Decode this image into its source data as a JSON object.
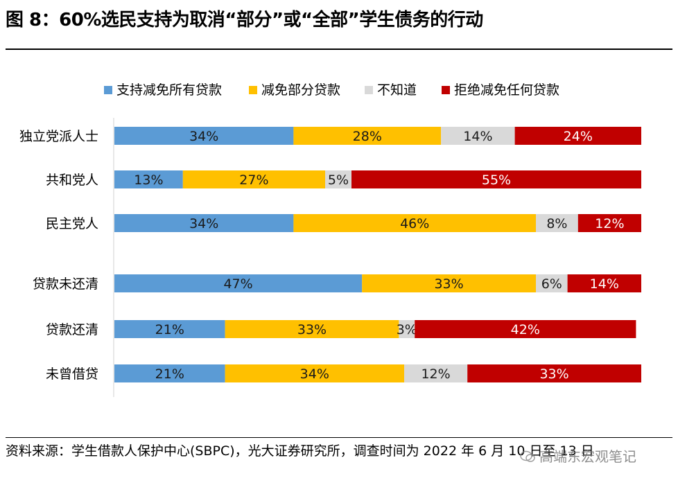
{
  "header": {
    "title": "图 8：60%选民支持为取消“部分”或“全部”学生债务的行动"
  },
  "footer": {
    "source": "资料来源：学生借款人保护中心(SBPC)，光大证券研究所，调查时间为 2022 年 6 月 10 日至 13 日",
    "watermark": "高端东宏观笔记"
  },
  "chart_data": {
    "type": "bar",
    "orientation": "horizontal",
    "stacked": true,
    "categories": [
      "独立党派人士",
      "共和党人",
      "民主党人",
      "贷款未还清",
      "贷款还清",
      "未曾借贷"
    ],
    "series": [
      {
        "name": "支持减免所有贷款",
        "color": "#5B9BD5",
        "values": [
          34,
          13,
          34,
          47,
          21,
          21
        ]
      },
      {
        "name": "减免部分贷款",
        "color": "#FFC000",
        "values": [
          28,
          27,
          46,
          33,
          33,
          34
        ]
      },
      {
        "name": "不知道",
        "color": "#D9D9D9",
        "values": [
          14,
          5,
          8,
          6,
          3,
          12
        ]
      },
      {
        "name": "拒绝减免任何贷款",
        "color": "#C00000",
        "values": [
          24,
          55,
          12,
          14,
          42,
          33
        ]
      }
    ],
    "value_suffix": "%",
    "legend_position": "top",
    "grid": false
  }
}
